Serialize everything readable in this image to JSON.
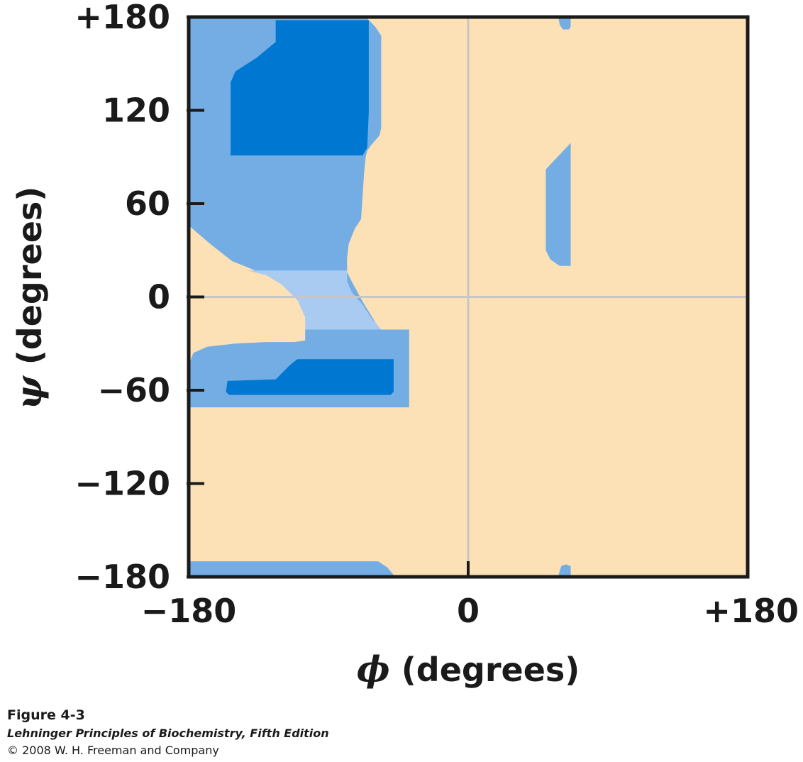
{
  "chart_data": {
    "type": "heatmap",
    "xlabel": {
      "symbol": "ϕ",
      "text": " (degrees)"
    },
    "ylabel": {
      "symbol": "ψ",
      "text": " (degrees)"
    },
    "xlim": [
      -180,
      180
    ],
    "ylim": [
      -180,
      180
    ],
    "x_ticks": [
      {
        "value": -180,
        "label": "−180"
      },
      {
        "value": 0,
        "label": "0"
      },
      {
        "value": 180,
        "label": "+180"
      }
    ],
    "y_ticks": [
      {
        "value": 180,
        "label": "+180"
      },
      {
        "value": 120,
        "label": "120"
      },
      {
        "value": 60,
        "label": "60"
      },
      {
        "value": 0,
        "label": "0"
      },
      {
        "value": -60,
        "label": "−60"
      },
      {
        "value": -120,
        "label": "−120"
      },
      {
        "value": -180,
        "label": "−180"
      }
    ],
    "gridlines": {
      "x": [
        0
      ],
      "y": [
        0
      ]
    },
    "colors": {
      "background": "#fce1b6",
      "medium": "#74ade3",
      "dark": "#0078d2",
      "light": "#a9cbf1",
      "grid": "#c6c6c6",
      "frame": "#1a1a1a"
    },
    "regions": [
      {
        "shade": "medium",
        "points": [
          [
            -180,
            180
          ],
          [
            -66,
            180
          ],
          [
            -60,
            174
          ],
          [
            -56,
            168
          ],
          [
            -56,
            109
          ],
          [
            -57,
            104
          ],
          [
            -63,
            97
          ],
          [
            -65,
            94
          ],
          [
            -66,
            90
          ],
          [
            -67,
            80
          ],
          [
            -69,
            50
          ],
          [
            -73,
            44
          ],
          [
            -77,
            34
          ],
          [
            -78,
            25
          ],
          [
            -78,
            16
          ],
          [
            -75,
            10
          ],
          [
            -68,
            -3
          ],
          [
            -60,
            -16
          ],
          [
            -57,
            -21
          ],
          [
            -53,
            -21
          ],
          [
            -38,
            -21
          ],
          [
            -38,
            -71
          ],
          [
            -180,
            -71
          ],
          [
            -180,
            -44
          ],
          [
            -177,
            -36
          ],
          [
            -168,
            -32
          ],
          [
            -150,
            -30
          ],
          [
            -130,
            -29
          ],
          [
            -112,
            -29
          ],
          [
            -105,
            -28
          ],
          [
            -105,
            -22
          ],
          [
            -104,
            -13
          ],
          [
            -110,
            -2
          ],
          [
            -120,
            8
          ],
          [
            -130,
            14
          ],
          [
            -142,
            19
          ],
          [
            -152,
            23
          ],
          [
            -166,
            34
          ],
          [
            -180,
            46
          ]
        ]
      },
      {
        "shade": "light",
        "points": [
          [
            -142,
            17
          ],
          [
            -78,
            17
          ],
          [
            -78,
            10
          ],
          [
            -75,
            3
          ],
          [
            -68,
            -5
          ],
          [
            -62,
            -14
          ],
          [
            -56,
            -21
          ],
          [
            -105,
            -21
          ],
          [
            -105,
            -13
          ],
          [
            -110,
            -2
          ],
          [
            -120,
            8
          ],
          [
            -130,
            14
          ]
        ]
      },
      {
        "shade": "dark",
        "points": [
          [
            -124,
            178
          ],
          [
            -64,
            178
          ],
          [
            -64,
            119
          ],
          [
            -65,
            96
          ],
          [
            -68,
            91
          ],
          [
            -153,
            91
          ],
          [
            -153,
            138
          ],
          [
            -150,
            145
          ],
          [
            -136,
            154
          ],
          [
            -124,
            164
          ]
        ]
      },
      {
        "shade": "dark",
        "points": [
          [
            -110,
            -40
          ],
          [
            -48,
            -40
          ],
          [
            -48,
            -61
          ],
          [
            -50,
            -63
          ],
          [
            -154,
            -63
          ],
          [
            -156,
            -61
          ],
          [
            -155,
            -54
          ],
          [
            -124,
            -53
          ],
          [
            -115,
            -44
          ]
        ]
      },
      {
        "shade": "medium",
        "points": [
          [
            50,
            82
          ],
          [
            66,
            99
          ],
          [
            66,
            20
          ],
          [
            59,
            20
          ],
          [
            53,
            24
          ],
          [
            50,
            30
          ]
        ]
      },
      {
        "shade": "medium",
        "points": [
          [
            58,
            180
          ],
          [
            66,
            180
          ],
          [
            66,
            174
          ],
          [
            65,
            172
          ],
          [
            61,
            172
          ],
          [
            59,
            175
          ]
        ]
      },
      {
        "shade": "medium",
        "points": [
          [
            58,
            -180
          ],
          [
            66,
            -180
          ],
          [
            66,
            -173
          ],
          [
            63,
            -172
          ],
          [
            60,
            -173
          ],
          [
            59,
            -176
          ]
        ]
      },
      {
        "shade": "medium",
        "points": [
          [
            -180,
            -180
          ],
          [
            -47,
            -180
          ],
          [
            -52,
            -174
          ],
          [
            -58,
            -170
          ],
          [
            -180,
            -170
          ]
        ]
      }
    ]
  },
  "caption": {
    "figure": "Figure 4-3",
    "book": "Lehninger Principles of Biochemistry, Fifth Edition",
    "copyright": "© 2008 W. H. Freeman and Company"
  }
}
